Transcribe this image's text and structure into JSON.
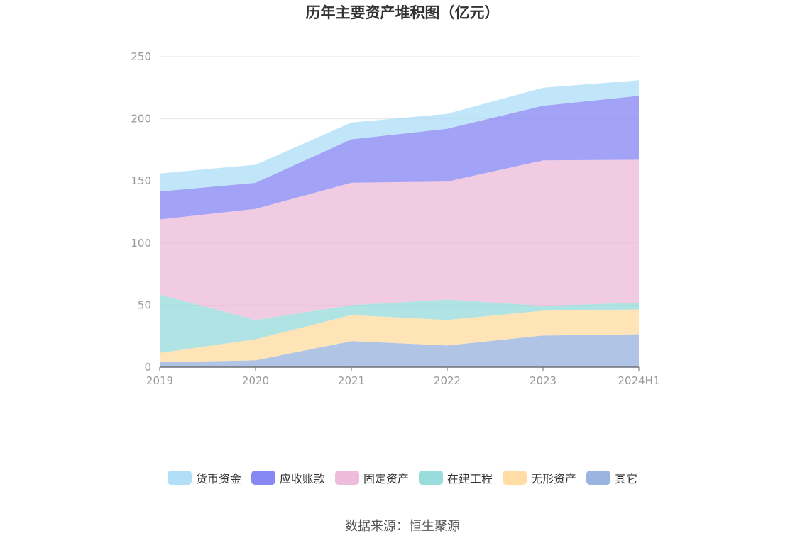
{
  "title": "历年主要资产堆积图（亿元）",
  "source": "数据来源：恒生聚源",
  "chart_data": {
    "type": "area",
    "stacked": true,
    "categories": [
      "2019",
      "2020",
      "2021",
      "2022",
      "2023",
      "2024H1"
    ],
    "ylim": [
      0,
      250
    ],
    "yticks": [
      0,
      50,
      100,
      150,
      200,
      250
    ],
    "grid": true,
    "legend_position": "bottom",
    "series": [
      {
        "name": "其它",
        "color": "#8EACDC",
        "values": [
          4,
          5.5,
          21,
          17.5,
          25.5,
          26.5
        ]
      },
      {
        "name": "无形资产",
        "color": "#FFD99A",
        "values": [
          7.5,
          17,
          21,
          20.5,
          20,
          20
        ]
      },
      {
        "name": "在建工程",
        "color": "#8ED8D8",
        "values": [
          47,
          15.5,
          8,
          16.5,
          4,
          5.5
        ]
      },
      {
        "name": "固定资产",
        "color": "#EBB5D6",
        "values": [
          60.5,
          89.5,
          98.5,
          95,
          117,
          115
        ]
      },
      {
        "name": "应收账款",
        "color": "#7B7BF2",
        "values": [
          22.5,
          21,
          35,
          42.5,
          44,
          51.5
        ]
      },
      {
        "name": "货币资金",
        "color": "#A8DCF7",
        "values": [
          14.5,
          14.5,
          13.5,
          12,
          14.5,
          12.5
        ]
      }
    ],
    "legend_order": [
      "货币资金",
      "应收账款",
      "固定资产",
      "在建工程",
      "无形资产",
      "其它"
    ]
  }
}
